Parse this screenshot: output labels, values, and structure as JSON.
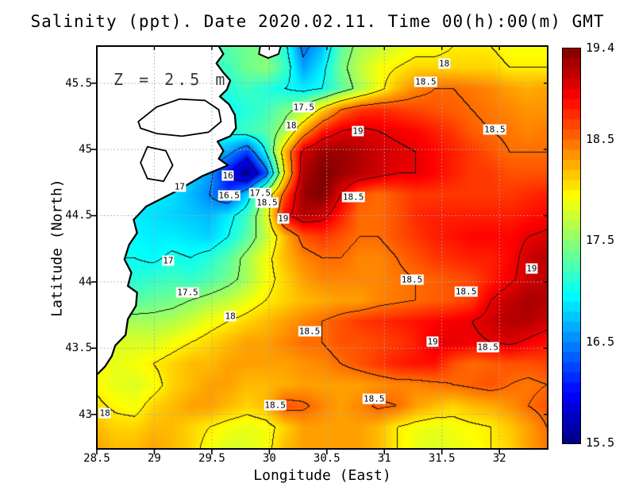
{
  "title": "Salinity (ppt). Date 2020.02.11. Time 00(h):00(m) GMT",
  "annotation": "Z = 2.5 m",
  "axes": {
    "x_label": "Longitude (East)",
    "y_label": "Latitude (North)",
    "x_ticks": [
      {
        "v": 28.5,
        "label": "28.5"
      },
      {
        "v": 29,
        "label": "29"
      },
      {
        "v": 29.5,
        "label": "29.5"
      },
      {
        "v": 30,
        "label": "30"
      },
      {
        "v": 30.5,
        "label": "30.5"
      },
      {
        "v": 31,
        "label": "31"
      },
      {
        "v": 31.5,
        "label": "31.5"
      },
      {
        "v": 32,
        "label": "32"
      }
    ],
    "y_ticks": [
      {
        "v": 45.5,
        "label": "45.5"
      },
      {
        "v": 45,
        "label": "45"
      },
      {
        "v": 44.5,
        "label": "44.5"
      },
      {
        "v": 44,
        "label": "44"
      },
      {
        "v": 43.5,
        "label": "43.5"
      },
      {
        "v": 43,
        "label": "43"
      }
    ]
  },
  "colorbar": {
    "min": 15.5,
    "max": 19.4,
    "step": 0.1,
    "labels": [
      {
        "value": 19.4,
        "text": "19.4"
      },
      {
        "value": 18.5,
        "text": "18.5"
      },
      {
        "value": 17.5,
        "text": "17.5"
      },
      {
        "value": 16.5,
        "text": "16.5"
      },
      {
        "value": 15.5,
        "text": "15.5"
      }
    ]
  },
  "chart_data": {
    "type": "heatmap",
    "title": "Salinity (ppt). Date 2020.02.11. Time 00(h):00(m) GMT",
    "xlabel": "Longitude (East)",
    "ylabel": "Latitude (North)",
    "depth_annotation": "Z = 2.5 m",
    "lon_range": [
      28.5,
      32.42
    ],
    "lat_range": [
      42.74,
      45.78
    ],
    "color_range": [
      15.5,
      19.4
    ],
    "colormap": "jet",
    "contour_interval_ppt": 0.5,
    "grid": {
      "nx": 25,
      "ny": 20,
      "order": "rows from north (lat 45.78) to south (lat 42.74)",
      "salinity_ppt": [
        [
          17.4,
          17.4,
          17.4,
          17.4,
          17.4,
          17.3,
          17.3,
          17.3,
          17.4,
          17.4,
          17.1,
          16.4,
          16.7,
          17.3,
          17.6,
          17.7,
          17.8,
          17.9,
          17.9,
          18.0,
          18.0,
          18.0,
          17.9,
          17.9,
          17.9
        ],
        [
          17.3,
          17.3,
          17.3,
          17.3,
          17.3,
          17.2,
          17.2,
          17.2,
          17.4,
          17.5,
          17.2,
          16.6,
          16.9,
          17.4,
          17.7,
          17.9,
          18.0,
          18.1,
          18.1,
          18.1,
          18.1,
          18.1,
          18.0,
          18.0,
          18.0
        ],
        [
          17.2,
          17.2,
          17.2,
          17.2,
          17.2,
          17.2,
          17.1,
          17.1,
          17.2,
          17.1,
          17.0,
          16.9,
          17.0,
          17.3,
          17.6,
          17.9,
          18.2,
          18.4,
          18.5,
          18.5,
          18.45,
          18.4,
          18.3,
          18.25,
          18.3
        ],
        [
          17.1,
          17.1,
          17.1,
          17.1,
          17.1,
          17.1,
          17.1,
          17.0,
          17.1,
          17.2,
          17.4,
          17.6,
          18.1,
          18.5,
          18.7,
          18.75,
          18.7,
          18.65,
          18.6,
          18.55,
          18.5,
          18.45,
          18.4,
          18.35,
          18.35
        ],
        [
          17.1,
          17.1,
          17.1,
          17.0,
          17.0,
          17.0,
          17.0,
          17.1,
          17.2,
          17.3,
          17.6,
          18.3,
          18.8,
          19.0,
          19.05,
          19.0,
          18.95,
          18.9,
          18.8,
          18.7,
          18.55,
          18.5,
          18.45,
          18.4,
          18.45
        ],
        [
          17.1,
          17.05,
          17.0,
          17.0,
          16.9,
          16.85,
          16.8,
          16.6,
          16.2,
          17.0,
          18.2,
          19.1,
          19.3,
          19.3,
          19.2,
          19.1,
          19.05,
          19.0,
          18.9,
          18.8,
          18.7,
          18.6,
          18.5,
          18.5,
          18.5
        ],
        [
          17.05,
          17.0,
          17.0,
          16.9,
          16.85,
          16.8,
          16.6,
          16.0,
          15.5,
          16.3,
          18.0,
          19.2,
          19.4,
          19.3,
          19.2,
          19.1,
          19.0,
          19.0,
          18.9,
          18.8,
          18.7,
          18.7,
          18.6,
          18.6,
          18.6
        ],
        [
          17.0,
          17.0,
          16.95,
          16.9,
          16.85,
          16.7,
          16.5,
          16.2,
          16.8,
          17.7,
          18.6,
          19.3,
          19.4,
          19.0,
          18.6,
          18.5,
          18.6,
          18.7,
          18.7,
          18.7,
          18.7,
          18.7,
          18.7,
          18.75,
          18.8
        ],
        [
          17.0,
          16.95,
          16.9,
          16.85,
          16.8,
          16.75,
          16.7,
          16.9,
          17.2,
          17.8,
          18.9,
          19.2,
          19.1,
          18.8,
          18.5,
          18.5,
          18.6,
          18.75,
          18.8,
          18.8,
          18.8,
          18.8,
          18.8,
          18.85,
          18.9
        ],
        [
          17.05,
          17.0,
          16.95,
          16.9,
          16.9,
          16.85,
          16.8,
          17.0,
          17.3,
          17.7,
          18.2,
          18.6,
          18.7,
          18.6,
          18.5,
          18.5,
          18.6,
          18.7,
          18.8,
          18.85,
          18.9,
          18.9,
          18.9,
          19.0,
          19.05
        ],
        [
          17.0,
          17.0,
          17.0,
          16.95,
          17.05,
          17.0,
          17.1,
          17.3,
          17.6,
          17.9,
          18.2,
          18.4,
          18.5,
          18.5,
          18.4,
          18.4,
          18.5,
          18.6,
          18.7,
          18.75,
          18.8,
          18.8,
          18.9,
          19.1,
          19.2
        ],
        [
          17.1,
          17.1,
          17.1,
          17.15,
          17.2,
          17.15,
          17.25,
          17.4,
          17.6,
          17.9,
          18.1,
          18.3,
          18.4,
          18.4,
          18.4,
          18.4,
          18.45,
          18.5,
          18.55,
          18.6,
          18.65,
          18.8,
          18.95,
          19.1,
          19.15
        ],
        [
          17.3,
          17.3,
          17.3,
          17.35,
          17.4,
          17.5,
          17.6,
          17.7,
          17.85,
          18.0,
          18.1,
          18.2,
          18.25,
          18.3,
          18.3,
          18.4,
          18.45,
          18.5,
          18.55,
          18.6,
          18.7,
          19.0,
          19.15,
          19.25,
          19.2
        ],
        [
          17.6,
          17.6,
          17.6,
          17.6,
          17.65,
          17.75,
          17.9,
          18.0,
          18.1,
          18.2,
          18.3,
          18.4,
          18.5,
          18.6,
          18.7,
          18.75,
          18.8,
          18.85,
          18.9,
          18.95,
          19.0,
          19.1,
          19.2,
          19.2,
          19.1
        ],
        [
          17.8,
          17.8,
          17.8,
          17.8,
          17.9,
          18.0,
          18.1,
          18.2,
          18.3,
          18.3,
          18.4,
          18.5,
          18.5,
          18.6,
          18.6,
          18.65,
          18.7,
          18.8,
          19.0,
          19.0,
          18.95,
          19.0,
          19.05,
          18.95,
          18.85
        ],
        [
          17.9,
          17.85,
          17.9,
          18.0,
          18.1,
          18.2,
          18.2,
          18.3,
          18.3,
          18.3,
          18.3,
          18.35,
          18.4,
          18.5,
          18.6,
          18.7,
          18.8,
          18.85,
          18.85,
          18.6,
          18.5,
          18.55,
          18.6,
          18.6,
          18.65
        ],
        [
          17.95,
          17.85,
          17.8,
          17.9,
          18.1,
          18.2,
          18.3,
          18.3,
          18.2,
          18.2,
          18.25,
          18.3,
          18.3,
          18.3,
          18.3,
          18.35,
          18.4,
          18.4,
          18.45,
          18.5,
          18.55,
          18.6,
          18.5,
          18.45,
          18.5
        ],
        [
          18.05,
          17.95,
          17.9,
          18.1,
          18.2,
          18.3,
          18.3,
          18.2,
          18.1,
          18.2,
          18.6,
          18.55,
          18.4,
          18.3,
          18.4,
          18.55,
          18.5,
          18.3,
          18.2,
          18.1,
          18.2,
          18.25,
          18.35,
          18.5,
          18.6
        ],
        [
          18.2,
          18.1,
          18.1,
          18.2,
          18.2,
          18.1,
          18.0,
          17.9,
          17.85,
          17.9,
          18.1,
          18.3,
          18.3,
          18.3,
          18.3,
          18.2,
          18.0,
          17.9,
          17.85,
          17.9,
          17.95,
          18.0,
          18.15,
          18.3,
          18.5
        ],
        [
          18.3,
          18.2,
          18.2,
          18.3,
          18.2,
          18.1,
          17.9,
          17.8,
          17.8,
          17.9,
          18.2,
          18.3,
          18.3,
          18.3,
          18.3,
          18.2,
          18.0,
          17.85,
          17.8,
          17.85,
          17.9,
          18.0,
          18.1,
          18.3,
          18.45
        ]
      ]
    },
    "contour_labels": [
      {
        "text": "18",
        "lon": 31.52,
        "lat": 45.65
      },
      {
        "text": "18.5",
        "lon": 31.36,
        "lat": 45.51
      },
      {
        "text": "17.5",
        "lon": 30.3,
        "lat": 45.32
      },
      {
        "text": "18",
        "lon": 30.19,
        "lat": 45.18
      },
      {
        "text": "19",
        "lon": 30.77,
        "lat": 45.14
      },
      {
        "text": "18.5",
        "lon": 31.96,
        "lat": 45.15
      },
      {
        "text": "16",
        "lon": 29.64,
        "lat": 44.8
      },
      {
        "text": "17",
        "lon": 29.22,
        "lat": 44.72
      },
      {
        "text": "16.5",
        "lon": 29.65,
        "lat": 44.65
      },
      {
        "text": "17.5",
        "lon": 29.92,
        "lat": 44.67
      },
      {
        "text": "18.5",
        "lon": 29.98,
        "lat": 44.6
      },
      {
        "text": "19",
        "lon": 30.12,
        "lat": 44.48
      },
      {
        "text": "18.5",
        "lon": 30.73,
        "lat": 44.64
      },
      {
        "text": "17",
        "lon": 29.12,
        "lat": 44.16
      },
      {
        "text": "17.5",
        "lon": 29.29,
        "lat": 43.92
      },
      {
        "text": "18",
        "lon": 29.66,
        "lat": 43.74
      },
      {
        "text": "18.5",
        "lon": 30.35,
        "lat": 43.63
      },
      {
        "text": "18.5",
        "lon": 31.24,
        "lat": 44.02
      },
      {
        "text": "18.5",
        "lon": 31.71,
        "lat": 43.93
      },
      {
        "text": "19",
        "lon": 31.42,
        "lat": 43.55
      },
      {
        "text": "18.5",
        "lon": 31.9,
        "lat": 43.51
      },
      {
        "text": "19",
        "lon": 32.28,
        "lat": 44.1
      },
      {
        "text": "18",
        "lon": 28.57,
        "lat": 43.01
      },
      {
        "text": "18.5",
        "lon": 30.05,
        "lat": 43.07
      },
      {
        "text": "18.5",
        "lon": 30.91,
        "lat": 43.12
      }
    ],
    "coastline": {
      "main": [
        [
          29.56,
          45.78
        ],
        [
          29.6,
          45.72
        ],
        [
          29.54,
          45.65
        ],
        [
          29.6,
          45.58
        ],
        [
          29.66,
          45.52
        ],
        [
          29.63,
          45.45
        ],
        [
          29.57,
          45.4
        ],
        [
          29.65,
          45.34
        ],
        [
          29.7,
          45.26
        ],
        [
          29.71,
          45.16
        ],
        [
          29.66,
          45.1
        ],
        [
          29.55,
          45.06
        ],
        [
          29.6,
          44.99
        ],
        [
          29.56,
          44.93
        ],
        [
          29.64,
          44.88
        ],
        [
          29.42,
          44.8
        ],
        [
          29.18,
          44.68
        ],
        [
          28.93,
          44.57
        ],
        [
          28.82,
          44.47
        ],
        [
          28.85,
          44.37
        ],
        [
          28.78,
          44.28
        ],
        [
          28.74,
          44.17
        ],
        [
          28.8,
          44.07
        ],
        [
          28.77,
          43.97
        ],
        [
          28.85,
          43.92
        ],
        [
          28.84,
          43.82
        ],
        [
          28.77,
          43.72
        ],
        [
          28.75,
          43.6
        ],
        [
          28.66,
          43.52
        ],
        [
          28.63,
          43.44
        ],
        [
          28.57,
          43.36
        ],
        [
          28.5,
          43.3
        ]
      ],
      "island": [
        [
          29.92,
          45.78
        ],
        [
          29.91,
          45.72
        ],
        [
          29.99,
          45.69
        ],
        [
          30.08,
          45.72
        ],
        [
          30.1,
          45.78
        ]
      ],
      "lakes": [
        [
          [
            28.86,
            45.21
          ],
          [
            29.02,
            45.32
          ],
          [
            29.22,
            45.38
          ],
          [
            29.44,
            45.37
          ],
          [
            29.56,
            45.3
          ],
          [
            29.58,
            45.21
          ],
          [
            29.47,
            45.13
          ],
          [
            29.24,
            45.1
          ],
          [
            29.02,
            45.12
          ],
          [
            28.88,
            45.16
          ]
        ],
        [
          [
            28.94,
            45.02
          ],
          [
            29.1,
            44.99
          ],
          [
            29.16,
            44.88
          ],
          [
            29.08,
            44.76
          ],
          [
            28.94,
            44.78
          ],
          [
            28.88,
            44.9
          ]
        ]
      ]
    }
  }
}
